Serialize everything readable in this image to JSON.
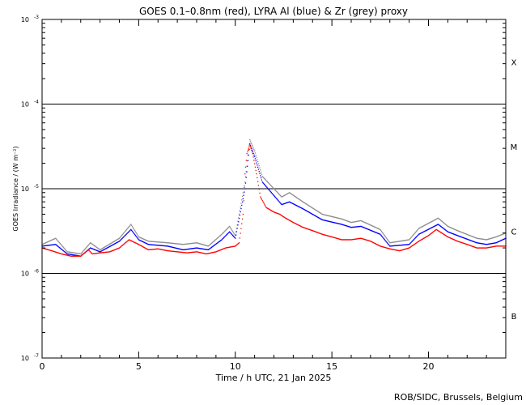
{
  "chart_data": {
    "type": "scatter",
    "title": "GOES 0.1–0.8nm (red), LYRA Al (blue) & Zr (grey) proxy",
    "xlabel": "Time / h UTC, 21 Jan 2025",
    "ylabel": "GOES Irradiance / (W m⁻²)",
    "xlim": [
      0,
      24
    ],
    "ylim": [
      1e-07,
      0.001
    ],
    "yscale": "log",
    "x_ticks": [
      0,
      5,
      10,
      15,
      20
    ],
    "y_ticks": [
      {
        "value": 1e-07,
        "base": "10",
        "exp": "-7"
      },
      {
        "value": 1e-06,
        "base": "10",
        "exp": "-6"
      },
      {
        "value": 1e-05,
        "base": "10",
        "exp": "-5"
      },
      {
        "value": 0.0001,
        "base": "10",
        "exp": "-4"
      },
      {
        "value": 0.001,
        "base": "10",
        "exp": "-3"
      }
    ],
    "flare_classes": [
      {
        "label": "X",
        "center": 0.000316
      },
      {
        "label": "M",
        "center": 3.16e-05
      },
      {
        "label": "C",
        "center": 3.16e-06
      },
      {
        "label": "B",
        "center": 3.16e-07
      }
    ],
    "threshold_lines": [
      0.0001,
      1e-05,
      1e-06
    ],
    "series": [
      {
        "name": "red",
        "color": "#ff0000",
        "points": [
          [
            0,
            2e-06
          ],
          [
            0.5,
            1.85e-06
          ],
          [
            1.0,
            1.7e-06
          ],
          [
            1.5,
            1.6e-06
          ],
          [
            2.0,
            1.6e-06
          ],
          [
            2.4,
            1.9e-06
          ],
          [
            2.6,
            1.7e-06
          ],
          [
            3.0,
            1.75e-06
          ],
          [
            3.5,
            1.8e-06
          ],
          [
            4.0,
            2e-06
          ],
          [
            4.5,
            2.5e-06
          ],
          [
            5.0,
            2.2e-06
          ],
          [
            5.5,
            1.9e-06
          ],
          [
            6.0,
            1.95e-06
          ],
          [
            6.5,
            1.85e-06
          ],
          [
            7.0,
            1.8e-06
          ],
          [
            7.5,
            1.75e-06
          ],
          [
            8.0,
            1.8e-06
          ],
          [
            8.5,
            1.7e-06
          ],
          [
            9.0,
            1.8e-06
          ],
          [
            9.5,
            2e-06
          ],
          [
            10.0,
            2.1e-06
          ],
          [
            10.2,
            2.3e-06
          ],
          [
            10.4,
            5e-06
          ],
          [
            10.5,
            1.5e-05
          ],
          [
            10.6,
            2.6e-05
          ],
          [
            10.75,
            3.3e-05
          ],
          [
            10.9,
            2.6e-05
          ],
          [
            11.1,
            1.5e-05
          ],
          [
            11.3,
            8e-06
          ],
          [
            11.6,
            6e-06
          ],
          [
            12.0,
            5.3e-06
          ],
          [
            12.3,
            5e-06
          ],
          [
            12.6,
            4.5e-06
          ],
          [
            13.0,
            4e-06
          ],
          [
            13.5,
            3.5e-06
          ],
          [
            14.0,
            3.2e-06
          ],
          [
            14.5,
            2.9e-06
          ],
          [
            15.0,
            2.7e-06
          ],
          [
            15.5,
            2.5e-06
          ],
          [
            16.0,
            2.5e-06
          ],
          [
            16.5,
            2.6e-06
          ],
          [
            17.0,
            2.4e-06
          ],
          [
            17.5,
            2.1e-06
          ],
          [
            18.0,
            1.95e-06
          ],
          [
            18.5,
            1.85e-06
          ],
          [
            19.0,
            2e-06
          ],
          [
            19.5,
            2.4e-06
          ],
          [
            20.0,
            2.8e-06
          ],
          [
            20.4,
            3.3e-06
          ],
          [
            21.0,
            2.7e-06
          ],
          [
            21.5,
            2.4e-06
          ],
          [
            22.0,
            2.2e-06
          ],
          [
            22.5,
            2e-06
          ],
          [
            23.0,
            2e-06
          ],
          [
            23.5,
            2.1e-06
          ],
          [
            24.0,
            2.1e-06
          ]
        ]
      },
      {
        "name": "blue",
        "color": "#0000ff",
        "points": [
          [
            0,
            2.1e-06
          ],
          [
            0.7,
            2.2e-06
          ],
          [
            1.3,
            1.7e-06
          ],
          [
            2.0,
            1.6e-06
          ],
          [
            2.5,
            2e-06
          ],
          [
            3.0,
            1.8e-06
          ],
          [
            4.0,
            2.4e-06
          ],
          [
            4.6,
            3.3e-06
          ],
          [
            5.0,
            2.5e-06
          ],
          [
            5.5,
            2.2e-06
          ],
          [
            6.5,
            2.1e-06
          ],
          [
            7.3,
            1.9e-06
          ],
          [
            8.0,
            2e-06
          ],
          [
            8.6,
            1.9e-06
          ],
          [
            9.3,
            2.5e-06
          ],
          [
            9.7,
            3.1e-06
          ],
          [
            10.0,
            2.6e-06
          ],
          [
            10.5,
            1e-05
          ],
          [
            10.75,
            3.4e-05
          ],
          [
            11.0,
            2.4e-05
          ],
          [
            11.4,
            1.2e-05
          ],
          [
            12.4,
            6.5e-06
          ],
          [
            12.8,
            7e-06
          ],
          [
            13.5,
            5.8e-06
          ],
          [
            14.5,
            4.3e-06
          ],
          [
            15.5,
            3.8e-06
          ],
          [
            16.0,
            3.5e-06
          ],
          [
            16.5,
            3.6e-06
          ],
          [
            17.5,
            2.9e-06
          ],
          [
            18.0,
            2.1e-06
          ],
          [
            19.0,
            2.2e-06
          ],
          [
            19.5,
            2.9e-06
          ],
          [
            20.5,
            3.8e-06
          ],
          [
            21.0,
            3.1e-06
          ],
          [
            21.5,
            2.8e-06
          ],
          [
            22.5,
            2.3e-06
          ],
          [
            23.0,
            2.2e-06
          ],
          [
            23.5,
            2.3e-06
          ],
          [
            24.0,
            2.6e-06
          ]
        ]
      },
      {
        "name": "grey",
        "color": "#8c8c8c",
        "points": [
          [
            0,
            2.2e-06
          ],
          [
            0.7,
            2.6e-06
          ],
          [
            1.3,
            1.8e-06
          ],
          [
            2.0,
            1.7e-06
          ],
          [
            2.5,
            2.3e-06
          ],
          [
            3.0,
            1.9e-06
          ],
          [
            4.0,
            2.6e-06
          ],
          [
            4.6,
            3.8e-06
          ],
          [
            5.0,
            2.7e-06
          ],
          [
            5.5,
            2.4e-06
          ],
          [
            6.5,
            2.3e-06
          ],
          [
            7.3,
            2.2e-06
          ],
          [
            8.0,
            2.3e-06
          ],
          [
            8.6,
            2.1e-06
          ],
          [
            9.3,
            2.9e-06
          ],
          [
            9.7,
            3.6e-06
          ],
          [
            10.0,
            2.8e-06
          ],
          [
            10.5,
            1.2e-05
          ],
          [
            10.75,
            3.8e-05
          ],
          [
            11.0,
            2.8e-05
          ],
          [
            11.4,
            1.4e-05
          ],
          [
            12.4,
            8e-06
          ],
          [
            12.8,
            9e-06
          ],
          [
            13.5,
            7e-06
          ],
          [
            14.5,
            5e-06
          ],
          [
            15.5,
            4.4e-06
          ],
          [
            16.0,
            4e-06
          ],
          [
            16.5,
            4.2e-06
          ],
          [
            17.5,
            3.3e-06
          ],
          [
            18.0,
            2.3e-06
          ],
          [
            19.0,
            2.5e-06
          ],
          [
            19.5,
            3.4e-06
          ],
          [
            20.5,
            4.5e-06
          ],
          [
            21.0,
            3.6e-06
          ],
          [
            21.5,
            3.2e-06
          ],
          [
            22.5,
            2.6e-06
          ],
          [
            23.0,
            2.5e-06
          ],
          [
            23.5,
            2.7e-06
          ],
          [
            24.0,
            3e-06
          ]
        ]
      }
    ]
  },
  "footer": {
    "credit": "ROB/SIDC, Brussels, Belgium"
  }
}
